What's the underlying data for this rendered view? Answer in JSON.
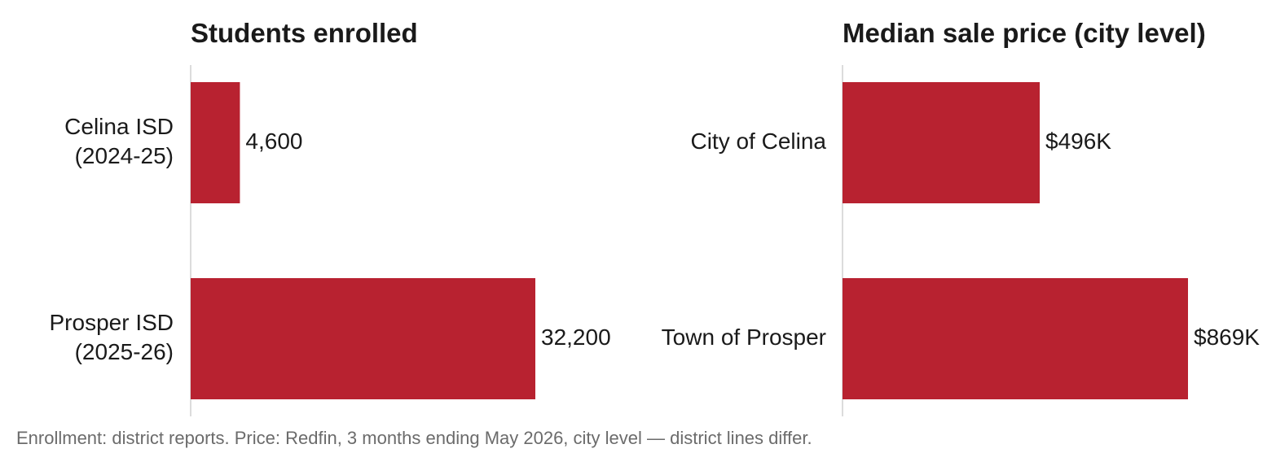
{
  "chart_data": [
    {
      "type": "bar",
      "orientation": "horizontal",
      "title": "Students enrolled",
      "categories": [
        [
          "Celina ISD",
          "(2024-25)"
        ],
        [
          "Prosper ISD",
          "(2025-26)"
        ]
      ],
      "values": [
        4600,
        32200
      ],
      "value_labels": [
        "4,600",
        "32,200"
      ],
      "xlim": [
        0,
        32200
      ],
      "grid": false,
      "color": "#b82230"
    },
    {
      "type": "bar",
      "orientation": "horizontal",
      "title": "Median sale price (city level)",
      "categories": [
        [
          "City of Celina"
        ],
        [
          "Town of Prosper"
        ]
      ],
      "values": [
        496,
        869
      ],
      "value_labels": [
        "$496K",
        "$869K"
      ],
      "xlim": [
        0,
        869
      ],
      "grid": false,
      "color": "#b82230"
    }
  ],
  "footnote": "Enrollment: district reports. Price: Redfin, 3 months ending May 2026, city level — district lines differ."
}
